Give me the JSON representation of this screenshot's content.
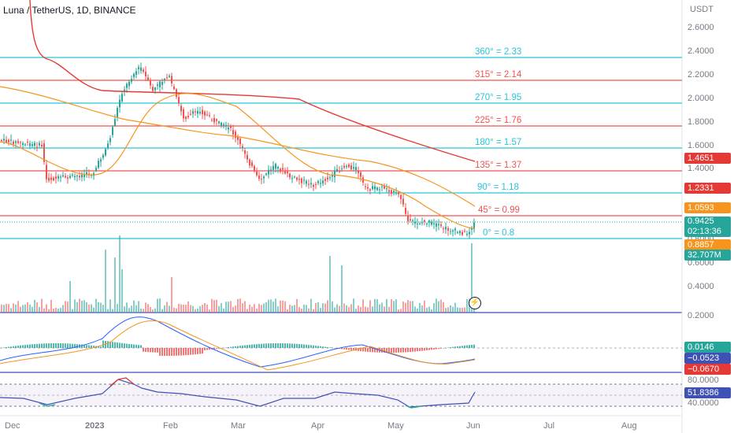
{
  "header": {
    "title": "Luna / TetherUS, 1D, BINANCE"
  },
  "price_axis": {
    "currency": "USDT",
    "ticks": [
      "2.6000",
      "2.4000",
      "2.2000",
      "2.0000",
      "1.8000",
      "1.6000",
      "1.4000",
      "0.8000",
      "0.6000",
      "0.4000",
      "0.2000"
    ]
  },
  "time_axis": {
    "ticks": [
      "Dec",
      "2023",
      "Feb",
      "Mar",
      "Apr",
      "May",
      "Jun",
      "Jul",
      "Aug"
    ]
  },
  "fib_levels": [
    {
      "label": "360° = 2.33",
      "color": "#26c6da"
    },
    {
      "label": "315° = 2.14",
      "color": "#ef5350"
    },
    {
      "label": "270° = 1.95",
      "color": "#26c6da"
    },
    {
      "label": "225° = 1.76",
      "color": "#ef5350"
    },
    {
      "label": "180° = 1.57",
      "color": "#26c6da"
    },
    {
      "label": "135° = 1.37",
      "color": "#ef5350"
    },
    {
      "label": "90° = 1.18",
      "color": "#26c6da"
    },
    {
      "label": "45° = 0.99",
      "color": "#ef5350"
    },
    {
      "label": "0° = 0.8",
      "color": "#26c6da"
    }
  ],
  "badges": [
    {
      "text": "1.4651",
      "color": "#e53935"
    },
    {
      "text": "1.2331",
      "color": "#e53935"
    },
    {
      "text": "1.0593",
      "color": "#f7941d"
    },
    {
      "text": "0.9425",
      "text2": "02:13:36",
      "color": "#26a69a"
    },
    {
      "text": "0.8857",
      "color": "#f7941d"
    },
    {
      "text": "32.707M",
      "color": "#26a69a"
    },
    {
      "text": "0.0146",
      "color": "#26a69a"
    },
    {
      "text": "−0.0523",
      "color": "#3f51b5"
    },
    {
      "text": "−0.0670",
      "color": "#e53935"
    },
    {
      "text": "80.0000",
      "color": "none"
    },
    {
      "text": "51.8386",
      "color": "#3f51b5"
    },
    {
      "text": "40.0000",
      "color": "none"
    }
  ],
  "icons": {
    "flash": "lightning-icon"
  },
  "colors": {
    "up": "#26a69a",
    "down": "#ef5350",
    "ma_slow": "#e53935",
    "ma_mid": "#f7941d",
    "rsi": "#3f51b5"
  }
}
